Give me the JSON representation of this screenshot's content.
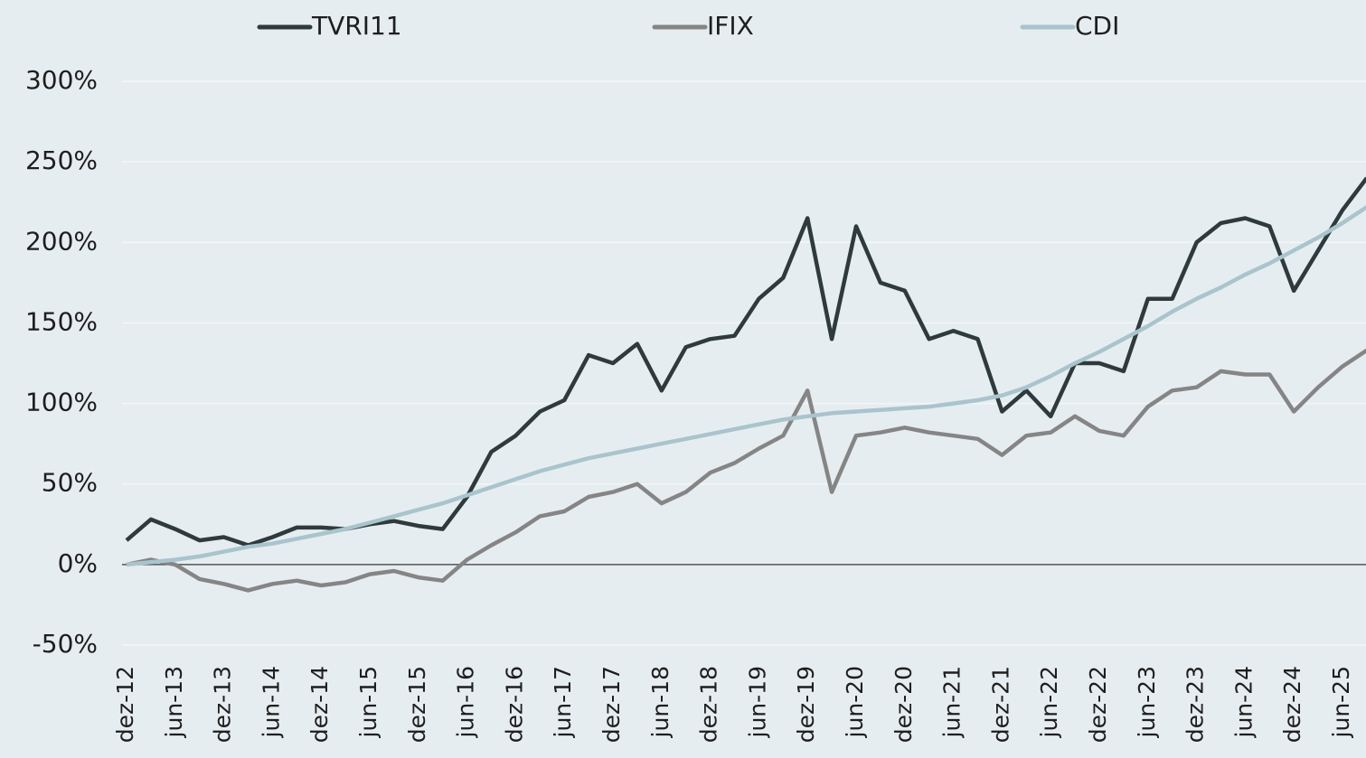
{
  "chart_data": {
    "type": "line",
    "categories": [
      "dez-12",
      null,
      "jun-13",
      null,
      "dez-13",
      null,
      "jun-14",
      null,
      "dez-14",
      null,
      "jun-15",
      null,
      "dez-15",
      null,
      "jun-16",
      null,
      "dez-16",
      null,
      "jun-17",
      null,
      "dez-17",
      null,
      "jun-18",
      null,
      "dez-18",
      null,
      "jun-19",
      null,
      "dez-19",
      null,
      "jun-20",
      null,
      "dez-20",
      null,
      "jun-21",
      null,
      "dez-21",
      null,
      "jun-22",
      null,
      "dez-22",
      null,
      "jun-23",
      null,
      "dez-23",
      null,
      "jun-24",
      null,
      "dez-24",
      null,
      "jun-25",
      null
    ],
    "series": [
      {
        "name": "TVRI11",
        "color": "#2e3a3c",
        "values": [
          15,
          28,
          22,
          15,
          17,
          12,
          17,
          23,
          23,
          22,
          25,
          27,
          24,
          22,
          42,
          70,
          80,
          95,
          102,
          130,
          125,
          137,
          108,
          135,
          140,
          142,
          165,
          178,
          215,
          140,
          210,
          175,
          170,
          140,
          145,
          140,
          95,
          108,
          92,
          125,
          125,
          120,
          165,
          165,
          200,
          212,
          215,
          210,
          170,
          195,
          220,
          240
        ]
      },
      {
        "name": "IFIX",
        "color": "#858585",
        "values": [
          0,
          3,
          0,
          -9,
          -12,
          -16,
          -12,
          -10,
          -13,
          -11,
          -6,
          -4,
          -8,
          -10,
          3,
          12,
          20,
          30,
          33,
          42,
          45,
          50,
          38,
          45,
          57,
          63,
          72,
          80,
          108,
          45,
          80,
          82,
          85,
          82,
          80,
          78,
          68,
          80,
          82,
          92,
          83,
          80,
          98,
          108,
          110,
          120,
          118,
          118,
          95,
          110,
          123,
          133
        ]
      },
      {
        "name": "CDI",
        "color": "#a9c4cc",
        "values": [
          0,
          1.5,
          3,
          5,
          8,
          11,
          13,
          16,
          19,
          22,
          26,
          30,
          34,
          38,
          43,
          48,
          53,
          58,
          62,
          66,
          69,
          72,
          75,
          78,
          81,
          84,
          87,
          90,
          92,
          94,
          95,
          96,
          97,
          98,
          100,
          102,
          105,
          110,
          117,
          125,
          132,
          140,
          148,
          157,
          165,
          172,
          180,
          187,
          195,
          203,
          212,
          222
        ]
      }
    ],
    "ylim": [
      -50,
      300
    ],
    "yticks": [
      {
        "value": -50,
        "label": "-50%"
      },
      {
        "value": 0,
        "label": "0%"
      },
      {
        "value": 50,
        "label": "50%"
      },
      {
        "value": 100,
        "label": "100%"
      },
      {
        "value": 150,
        "label": "150%"
      },
      {
        "value": 200,
        "label": "200%"
      },
      {
        "value": 250,
        "label": "250%"
      },
      {
        "value": 300,
        "label": "300%"
      }
    ],
    "grid": true
  }
}
